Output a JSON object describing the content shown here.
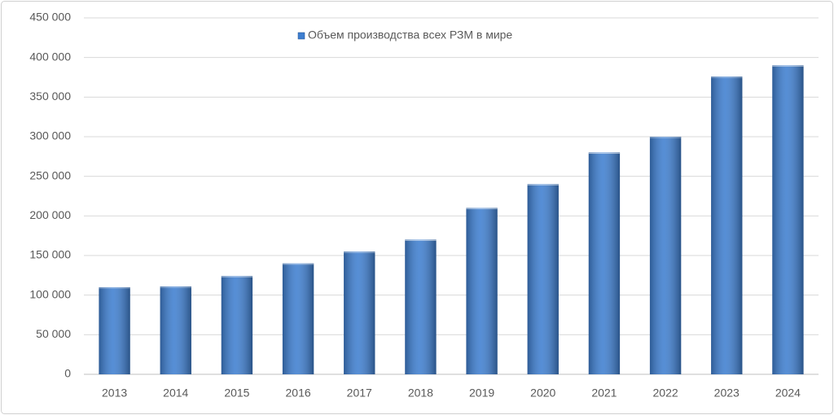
{
  "chart_data": {
    "type": "bar",
    "categories": [
      "2013",
      "2014",
      "2015",
      "2016",
      "2017",
      "2018",
      "2019",
      "2020",
      "2021",
      "2022",
      "2023",
      "2024"
    ],
    "series": [
      {
        "name": "Объем производства всех РЗМ в мире",
        "color": "#3f7fd0",
        "values": [
          110000,
          111000,
          124000,
          140000,
          155000,
          170000,
          210000,
          240000,
          280000,
          300000,
          376000,
          390000
        ]
      }
    ],
    "ylim": [
      0,
      450000
    ],
    "yticks": [
      0,
      {
        "value": 50000,
        "label": "50 000"
      },
      {
        "value": 100000,
        "label": "100 000"
      },
      {
        "value": 150000,
        "label": "150 000"
      },
      {
        "value": 200000,
        "label": "200 000"
      },
      {
        "value": 250000,
        "label": "250 000"
      },
      {
        "value": 300000,
        "label": "300 000"
      },
      {
        "value": 350000,
        "label": "350 000"
      },
      {
        "value": 400000,
        "label": "400 000"
      },
      {
        "value": 450000,
        "label": "450 000"
      }
    ],
    "grid": true,
    "legend": "top"
  }
}
